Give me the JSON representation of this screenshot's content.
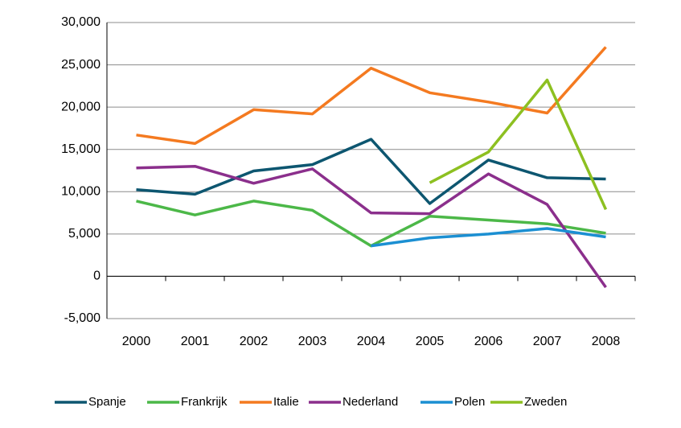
{
  "chart_data": {
    "type": "line",
    "categories": [
      "2000",
      "2001",
      "2002",
      "2003",
      "2004",
      "2005",
      "2006",
      "2007",
      "2008"
    ],
    "series": [
      {
        "name": "Spanje",
        "color": "#0d5670",
        "values": [
          10250,
          9700,
          12450,
          13200,
          16200,
          8600,
          13750,
          11650,
          11500
        ]
      },
      {
        "name": "Frankrijk",
        "color": "#4cb848",
        "values": [
          8900,
          7250,
          8900,
          7800,
          3600,
          7100,
          6650,
          6200,
          5100
        ]
      },
      {
        "name": "Italie",
        "color": "#f47a20",
        "values": [
          16700,
          15700,
          19700,
          19200,
          24600,
          21700,
          20600,
          19300,
          27100
        ]
      },
      {
        "name": "Nederland",
        "color": "#8b2f8c",
        "values": [
          12800,
          13000,
          11000,
          12700,
          7500,
          7400,
          12100,
          8500,
          -1300
        ]
      },
      {
        "name": "Polen",
        "color": "#1b8fd2",
        "values": [
          null,
          null,
          null,
          null,
          3600,
          4550,
          5000,
          5650,
          4650
        ]
      },
      {
        "name": "Zweden",
        "color": "#8dc021",
        "values": [
          null,
          null,
          null,
          null,
          null,
          11050,
          14700,
          23200,
          7900
        ]
      }
    ],
    "ylim": [
      -5000,
      30000
    ],
    "yticks": [
      {
        "value": -5000,
        "label": "-5,000"
      },
      0,
      {
        "value": 5000,
        "label": "5,000"
      },
      {
        "value": 10000,
        "label": "10,000"
      },
      {
        "value": 15000,
        "label": "15,000"
      },
      {
        "value": 20000,
        "label": "20,000"
      },
      {
        "value": 25000,
        "label": "25,000"
      },
      {
        "value": 30000,
        "label": "30,000"
      }
    ],
    "grid": true,
    "legend": "bottom"
  }
}
